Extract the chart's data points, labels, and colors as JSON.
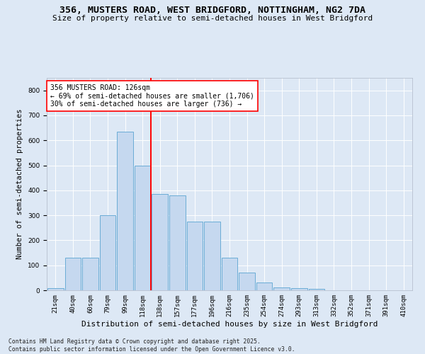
{
  "title1": "356, MUSTERS ROAD, WEST BRIDGFORD, NOTTINGHAM, NG2 7DA",
  "title2": "Size of property relative to semi-detached houses in West Bridgford",
  "xlabel": "Distribution of semi-detached houses by size in West Bridgford",
  "ylabel": "Number of semi-detached properties",
  "bins": [
    "21sqm",
    "40sqm",
    "60sqm",
    "79sqm",
    "99sqm",
    "118sqm",
    "138sqm",
    "157sqm",
    "177sqm",
    "196sqm",
    "216sqm",
    "235sqm",
    "254sqm",
    "274sqm",
    "293sqm",
    "313sqm",
    "332sqm",
    "352sqm",
    "371sqm",
    "391sqm",
    "410sqm"
  ],
  "values": [
    8,
    130,
    130,
    300,
    635,
    500,
    385,
    380,
    275,
    275,
    130,
    70,
    30,
    12,
    8,
    5,
    0,
    0,
    0,
    0,
    0
  ],
  "bar_color": "#c5d8ef",
  "bar_edge_color": "#6aacd6",
  "vline_color": "red",
  "annotation_text": "356 MUSTERS ROAD: 126sqm\n← 69% of semi-detached houses are smaller (1,706)\n30% of semi-detached houses are larger (736) →",
  "annotation_box_color": "white",
  "annotation_box_edge": "red",
  "ylim": [
    0,
    850
  ],
  "yticks": [
    0,
    100,
    200,
    300,
    400,
    500,
    600,
    700,
    800
  ],
  "bg_color": "#dde8f5",
  "footer": "Contains HM Land Registry data © Crown copyright and database right 2025.\nContains public sector information licensed under the Open Government Licence v3.0.",
  "title1_fontsize": 9.5,
  "title2_fontsize": 8,
  "xlabel_fontsize": 8,
  "ylabel_fontsize": 7.5,
  "tick_fontsize": 6.5,
  "annotation_fontsize": 7,
  "footer_fontsize": 5.8
}
